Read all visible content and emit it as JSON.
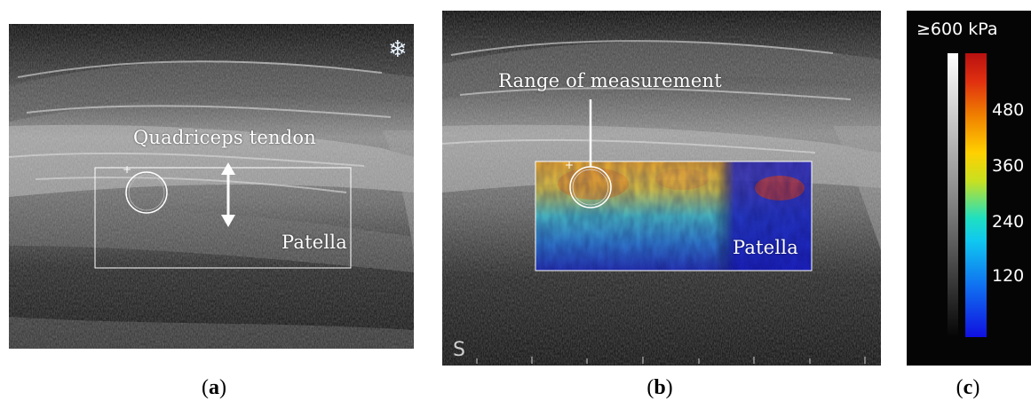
{
  "panel_a": {
    "label_tendon": "Quadriceps tendon",
    "label_patella": "Patella",
    "freeze_icon": "snowflake-icon",
    "caption_letter": "a"
  },
  "panel_b": {
    "label_range": "Range of measurement",
    "label_patella": "Patella",
    "mode_icon": "s-mode-icon",
    "caption_letter": "b"
  },
  "panel_c": {
    "scale_max": "≥600 kPa",
    "ticks": [
      "480",
      "360",
      "240",
      "120"
    ],
    "caption_letter": "c"
  },
  "colors": {
    "colorbar_top": "#c01010",
    "colorbar_mid_high": "#ffd800",
    "colorbar_mid": "#00d8d8",
    "colorbar_bottom": "#1010e8"
  }
}
